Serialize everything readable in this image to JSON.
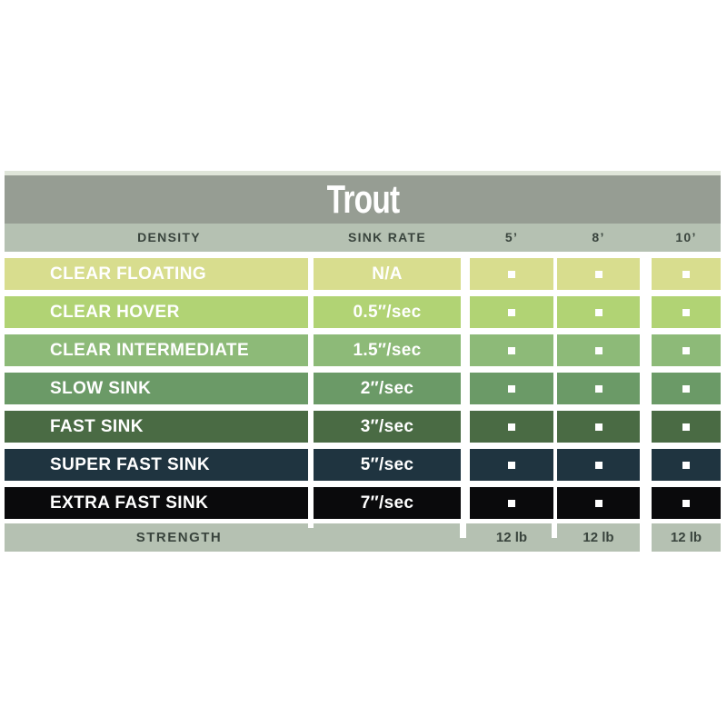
{
  "chart_data": {
    "type": "table",
    "title": "Trout",
    "columns": {
      "density": "DENSITY",
      "sink_rate": "SINK RATE",
      "lengths": [
        "5’",
        "8’",
        "10’"
      ]
    },
    "rows": [
      {
        "density": "CLEAR FLOATING",
        "sink_rate": "N/A",
        "color": "#d8dd8e",
        "available": [
          true,
          true,
          true
        ]
      },
      {
        "density": "CLEAR HOVER",
        "sink_rate": "0.5″/sec",
        "color": "#b1d374",
        "available": [
          true,
          true,
          true
        ]
      },
      {
        "density": "CLEAR INTERMEDIATE",
        "sink_rate": "1.5″/sec",
        "color": "#8dba78",
        "available": [
          true,
          true,
          true
        ]
      },
      {
        "density": "SLOW SINK",
        "sink_rate": "2″/sec",
        "color": "#6b9a67",
        "available": [
          true,
          true,
          true
        ]
      },
      {
        "density": "FAST SINK",
        "sink_rate": "3″/sec",
        "color": "#4a6b44",
        "available": [
          true,
          true,
          true
        ]
      },
      {
        "density": "SUPER FAST SINK",
        "sink_rate": "5″/sec",
        "color": "#1f3440",
        "available": [
          true,
          true,
          true
        ]
      },
      {
        "density": "EXTRA FAST SINK",
        "sink_rate": "7″/sec",
        "color": "#0a0a0c",
        "available": [
          true,
          true,
          true
        ]
      }
    ],
    "strength": {
      "label": "STRENGTH",
      "values": [
        "12 lb",
        "12 lb",
        "12 lb"
      ]
    }
  },
  "colors": {
    "title_band": "#969d93",
    "header_band": "#b5c1b2",
    "strength_band": "#b5c1b2",
    "top_strip": "#dfe5d9",
    "header_text": "#39443d",
    "row_text": "#ffffff"
  }
}
